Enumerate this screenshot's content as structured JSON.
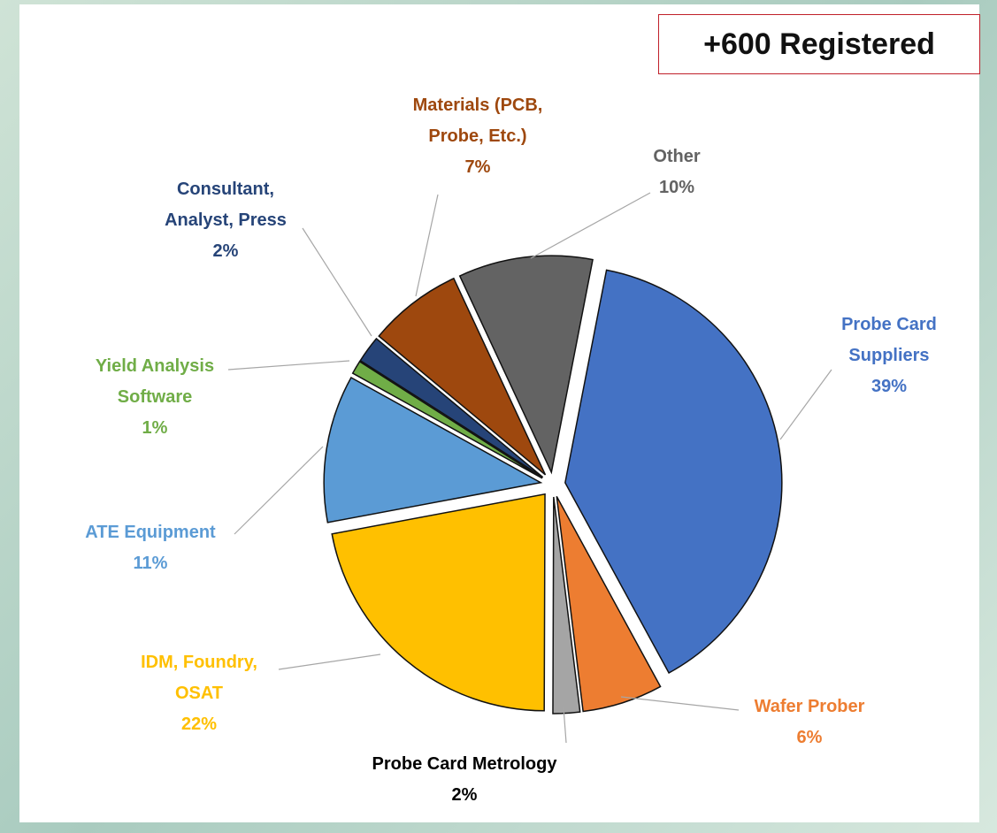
{
  "chart_data": {
    "type": "pie",
    "annotation": "+600 Registered",
    "categories": [
      "Probe Card\nSuppliers",
      "Wafer Prober",
      "Probe Card Metrology",
      "IDM, Foundry,\nOSAT",
      "ATE Equipment",
      "Yield Analysis\nSoftware",
      "Consultant,\nAnalyst, Press",
      "Materials (PCB,\nProbe, Etc.)",
      "Other"
    ],
    "values": [
      39,
      6,
      2,
      22,
      11,
      1,
      2,
      7,
      10
    ],
    "value_labels": [
      "39%",
      "6%",
      "2%",
      "22%",
      "11%",
      "1%",
      "2%",
      "7%",
      "10%"
    ],
    "colors": [
      "#4472c4",
      "#ed7d31",
      "#a5a5a5",
      "#ffc000",
      "#5b9bd5",
      "#70ad47",
      "#264478",
      "#9e480e",
      "#636363"
    ],
    "label_colors": [
      "#4472c4",
      "#ed7d31",
      "#000000",
      "#ffc000",
      "#5b9bd5",
      "#70ad47",
      "#264478",
      "#9e480e",
      "#636363"
    ]
  }
}
